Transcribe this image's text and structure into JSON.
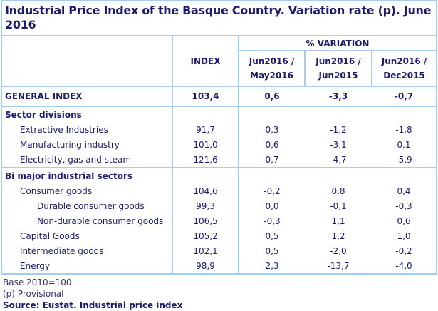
{
  "title": "Industrial Price Index of the Basque Country. Variation rate (p). June 2016",
  "header": {
    "index": "INDEX",
    "variation": "% VARIATION",
    "columns": [
      "Jun2016 / May2016",
      "Jun2016 / Jun2015",
      "Jun2016 / Dec2015"
    ],
    "col_lines": [
      [
        "Jun2016 /",
        "May2016"
      ],
      [
        "Jun2016 /",
        "Jun2015"
      ],
      [
        "Jun2016 /",
        "Dec2015"
      ]
    ]
  },
  "general": {
    "label": "GENERAL INDEX",
    "index": "103,4",
    "v1": "0,6",
    "v2": "-3,3",
    "v3": "-0,7"
  },
  "sections": [
    {
      "title": "Sector divisions",
      "rows": [
        {
          "label": "Extractive Industries",
          "index": "91,7",
          "v1": "0,3",
          "v2": "-1,2",
          "v3": "-1,8"
        },
        {
          "label": "Manufacturing industry",
          "index": "101,0",
          "v1": "0,6",
          "v2": "-3,1",
          "v3": "0,1"
        },
        {
          "label": "Electricity, gas and steam",
          "index": "121,6",
          "v1": "0,7",
          "v2": "-4,7",
          "v3": "-5,9"
        }
      ]
    },
    {
      "title": "Bi major industrial sectors",
      "rows": [
        {
          "label": "Consumer goods",
          "index": "104,6",
          "v1": "-0,2",
          "v2": "0,8",
          "v3": "0,4"
        },
        {
          "label": "Durable consumer goods",
          "index": "99,3",
          "v1": "0,0",
          "v2": "-0,1",
          "v3": "-0,3"
        },
        {
          "label": "Non-durable consumer goods",
          "index": "106,5",
          "v1": "-0,3",
          "v2": "1,1",
          "v3": "0,6"
        },
        {
          "label": "Capital Goods",
          "index": "105,2",
          "v1": "0,5",
          "v2": "1,2",
          "v3": "1,0"
        },
        {
          "label": "Intermediate goods",
          "index": "102,1",
          "v1": "0,5",
          "v2": "-2,0",
          "v3": "-0,2"
        },
        {
          "label": "Energy",
          "index": "98,9",
          "v1": "2,3",
          "v2": "-13,7",
          "v3": "-4,0"
        }
      ]
    }
  ],
  "footer": {
    "base": "Base 2010=100",
    "provisional": "(p) Provisional",
    "source": "Source: Eustat. Industrial price index"
  }
}
